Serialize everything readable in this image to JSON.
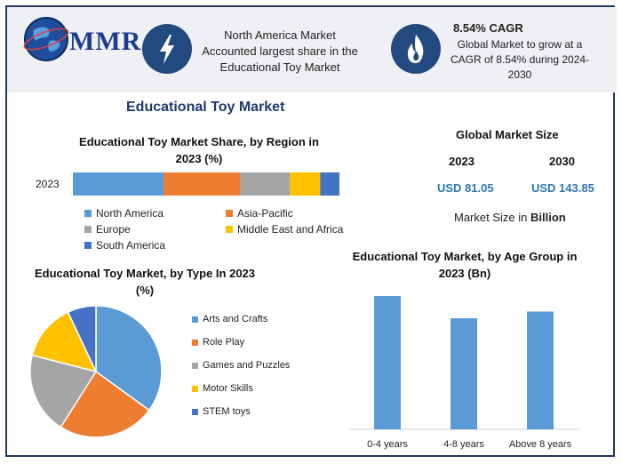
{
  "logo": {
    "text": "MMR"
  },
  "header": {
    "highlight_text": "North America Market Accounted largest share in the Educational Toy Market",
    "cagr_title": "8.54% CAGR",
    "cagr_text": "Global Market to grow at a CAGR of 8.54% during 2024-2030"
  },
  "main_title": "Educational Toy Market",
  "market_size": {
    "title": "Global Market Size",
    "year_a": "2023",
    "year_b": "2030",
    "value_a": "USD 81.05",
    "value_b": "USD 143.85",
    "note_prefix": "Market Size in ",
    "note_unit": "Billion"
  },
  "colors": {
    "blue": "#5b9bd5",
    "orange": "#ed7d31",
    "gray": "#a5a5a5",
    "yellow": "#ffc000",
    "darkblue": "#4472c4",
    "icon_circle": "#234a7e"
  },
  "icons": [
    "globe-logo-icon",
    "lightning-icon",
    "flame-icon"
  ],
  "chart_data": [
    {
      "type": "bar",
      "orientation": "horizontal-stacked",
      "title": "Educational Toy Market Share, by Region in 2023 (%)",
      "categories": [
        "2023"
      ],
      "series": [
        {
          "name": "North America",
          "values": [
            33
          ],
          "color": "#5b9bd5"
        },
        {
          "name": "Asia-Pacific",
          "values": [
            28
          ],
          "color": "#ed7d31"
        },
        {
          "name": "Europe",
          "values": [
            18
          ],
          "color": "#a5a5a5"
        },
        {
          "name": "Middle East and Africa",
          "values": [
            11
          ],
          "color": "#ffc000"
        },
        {
          "name": "South America",
          "values": [
            7
          ],
          "color": "#4472c4"
        }
      ],
      "legend": "bottom"
    },
    {
      "type": "pie",
      "title": "Educational Toy  Market, by Type In 2023 (%)",
      "labels": [
        "Arts and Crafts",
        "Role Play",
        "Games and Puzzles",
        "Motor Skills",
        "STEM toys"
      ],
      "values": [
        35,
        24,
        20,
        14,
        7
      ],
      "colors": [
        "#5b9bd5",
        "#ed7d31",
        "#a5a5a5",
        "#ffc000",
        "#4472c4"
      ],
      "legend": "right"
    },
    {
      "type": "bar",
      "title": "Educational Toy Market, by Age Group in 2023 (Bn)",
      "categories": [
        "0-4 years",
        "4-8 years",
        "Above 8 years"
      ],
      "values": [
        30,
        25,
        26.5
      ],
      "ylim": [
        0,
        32
      ],
      "color": "#5b9bd5",
      "grid": false
    }
  ]
}
